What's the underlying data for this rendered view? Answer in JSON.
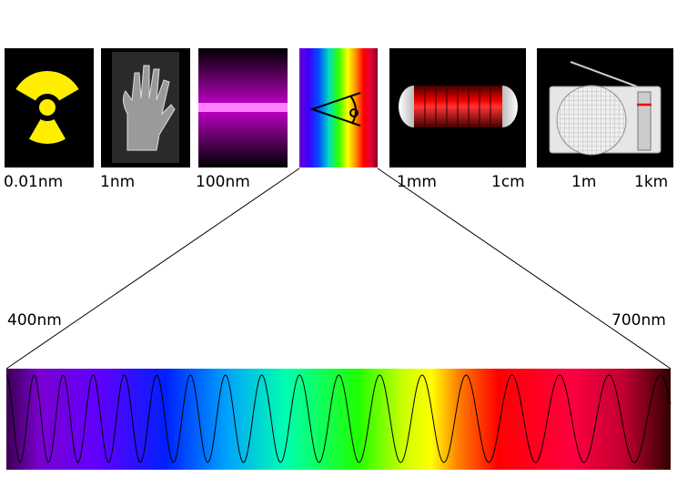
{
  "scale_labels": [
    "0.01nm",
    "1nm",
    "100nm",
    "1mm",
    "1cm",
    "1m",
    "1km"
  ],
  "visible_range": {
    "start": "400nm",
    "end": "700nm"
  }
}
